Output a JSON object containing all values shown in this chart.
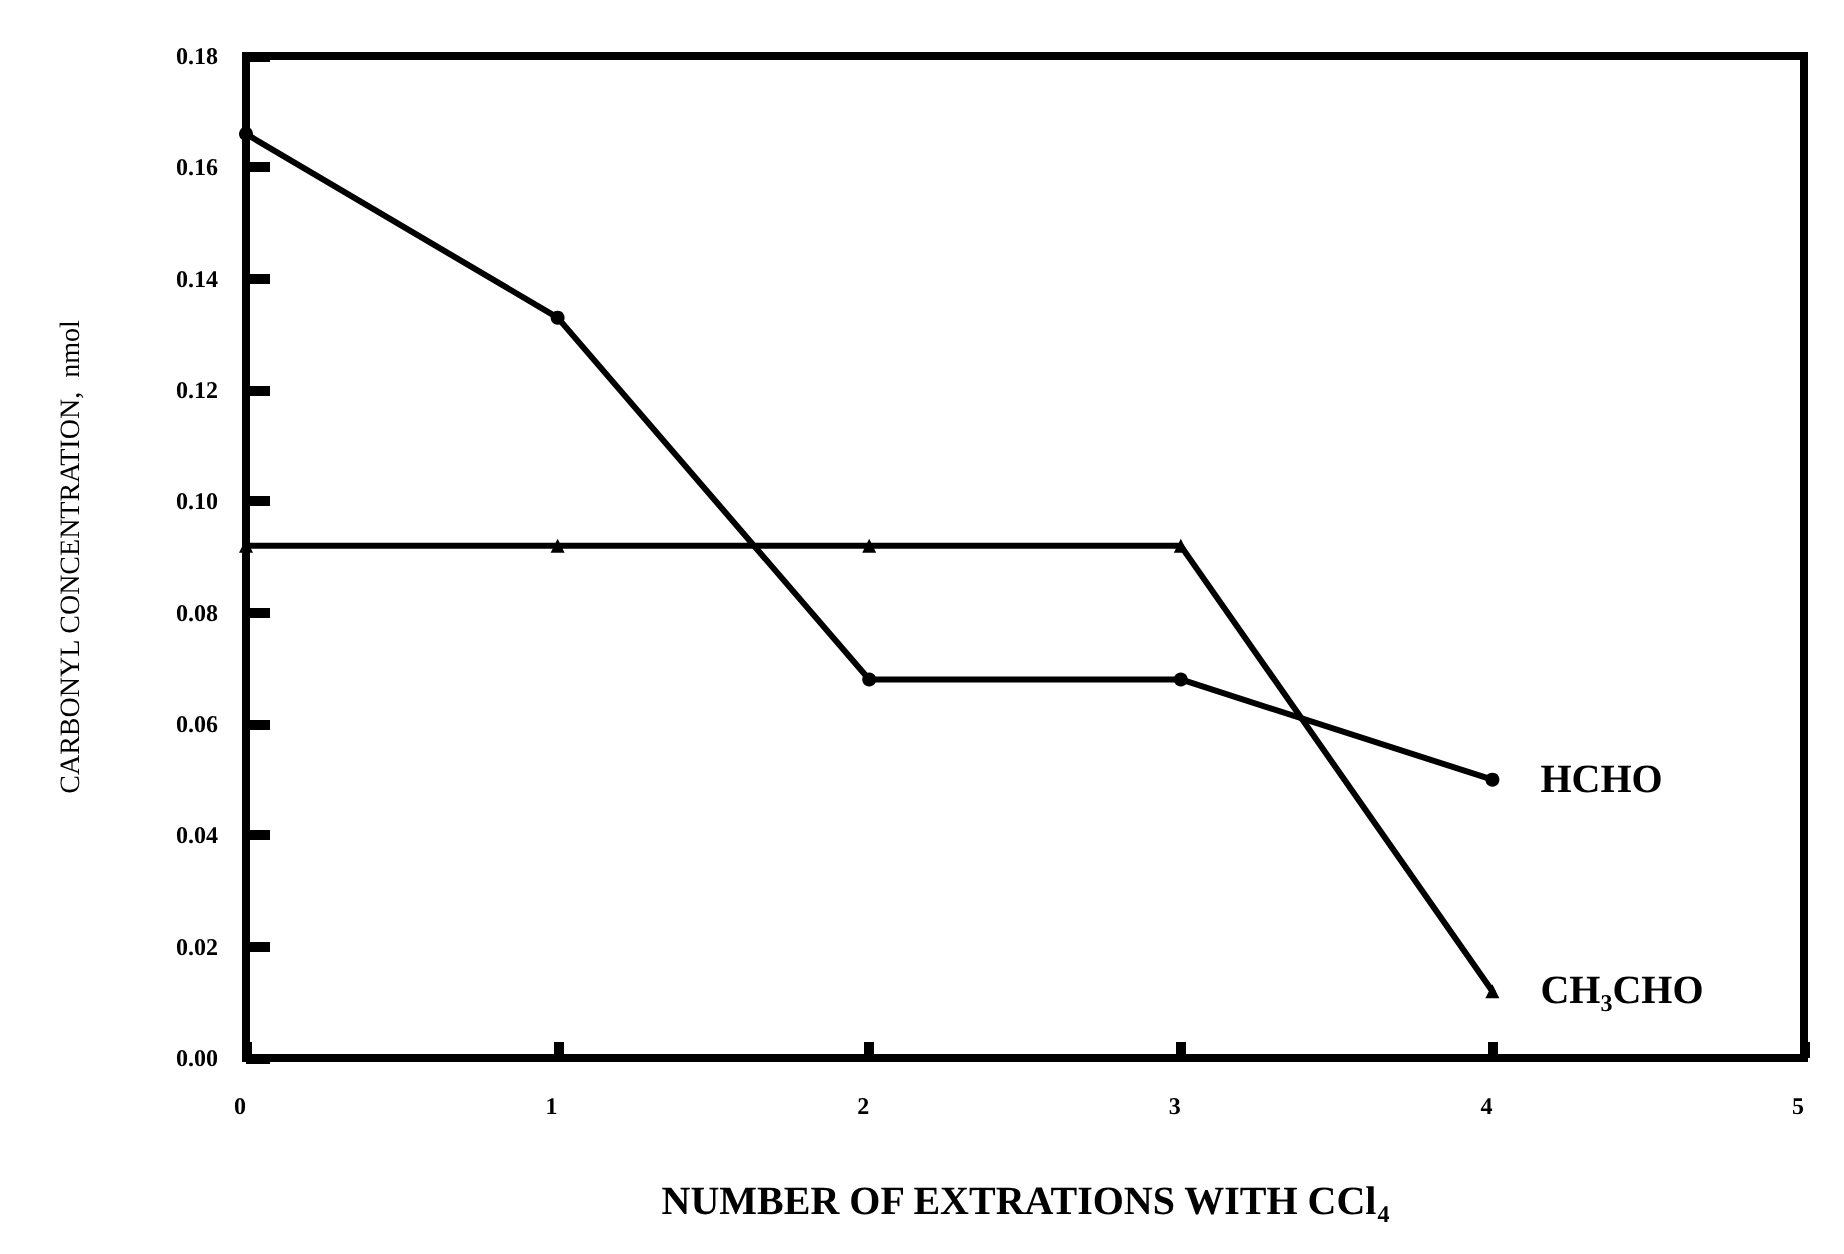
{
  "chart_data": {
    "type": "line",
    "xlabel": "NUMBER OF EXTRATIONS WITH CCl$_{4}$",
    "ylabel": "CARBONYL CONCENTRATION,  nmol",
    "x": [
      0,
      1,
      2,
      3,
      4
    ],
    "series": [
      {
        "name": "HCHO",
        "color": "#000000",
        "marker": "circle",
        "values": [
          0.166,
          0.133,
          0.068,
          0.068,
          0.05
        ]
      },
      {
        "name": "CH$_{3}$CHO",
        "color": "#000000",
        "marker": "triangle",
        "values": [
          0.092,
          0.092,
          0.092,
          0.092,
          0.012
        ]
      }
    ],
    "xlim": [
      0,
      5
    ],
    "xticks": [
      0,
      1,
      2,
      3,
      4,
      5
    ],
    "ylim": [
      0,
      0.18
    ],
    "yticks": [
      {
        "value": 0,
        "label": "0.00"
      },
      0.02,
      0.04,
      0.06,
      0.08,
      {
        "value": 0.1,
        "label": "0.10"
      },
      0.12,
      0.14,
      0.16,
      0.18
    ],
    "grid": false,
    "legend": false,
    "line_style": "solid"
  }
}
